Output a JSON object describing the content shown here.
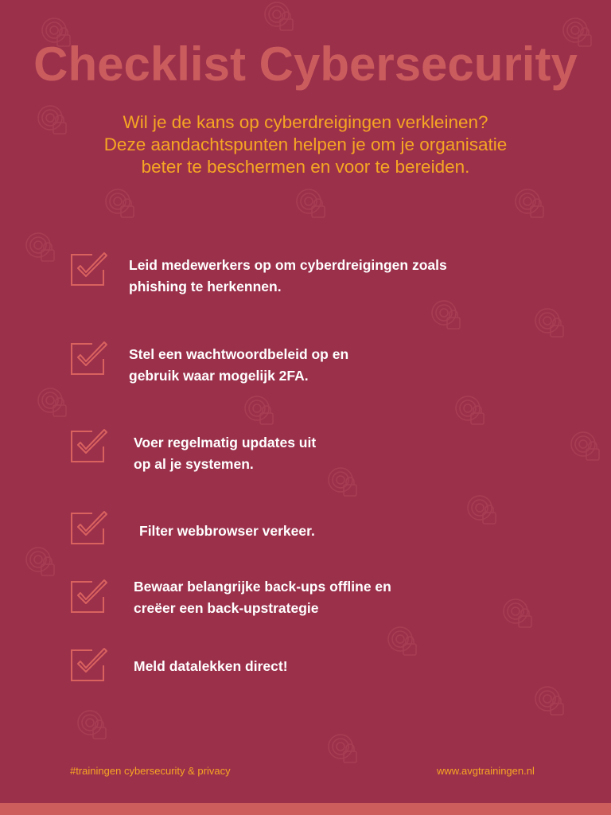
{
  "title": "Checklist Cybersecurity",
  "subtitle": [
    "Wil je de kans op cyberdreigingen verkleinen?",
    "Deze aandachtspunten helpen je om je organisatie",
    "beter te beschermen en voor te bereiden."
  ],
  "items": [
    {
      "lines": [
        "Leid medewerkers op om cyberdreigingen zoals",
        "phishing te herkennen."
      ]
    },
    {
      "lines": [
        "Stel een wachtwoordbeleid op en",
        "gebruik waar mogelijk 2FA."
      ]
    },
    {
      "lines": [
        "Voer regelmatig updates uit",
        "op al je systemen."
      ]
    },
    {
      "lines": [
        "Filter webbrowser verkeer."
      ]
    },
    {
      "lines": [
        "Bewaar belangrijke back-ups offline en",
        "creëer een back-upstrategie"
      ]
    },
    {
      "lines": [
        "Meld datalekken direct!"
      ]
    }
  ],
  "footer": {
    "hashtag": "#trainingen cybersecurity & privacy",
    "url": "www.avgtrainingen.nl"
  },
  "colors": {
    "background": "#9b304b",
    "title": "#cb5c5e",
    "accent": "#f5a623",
    "bottom_bar": "#cd5c5c"
  }
}
